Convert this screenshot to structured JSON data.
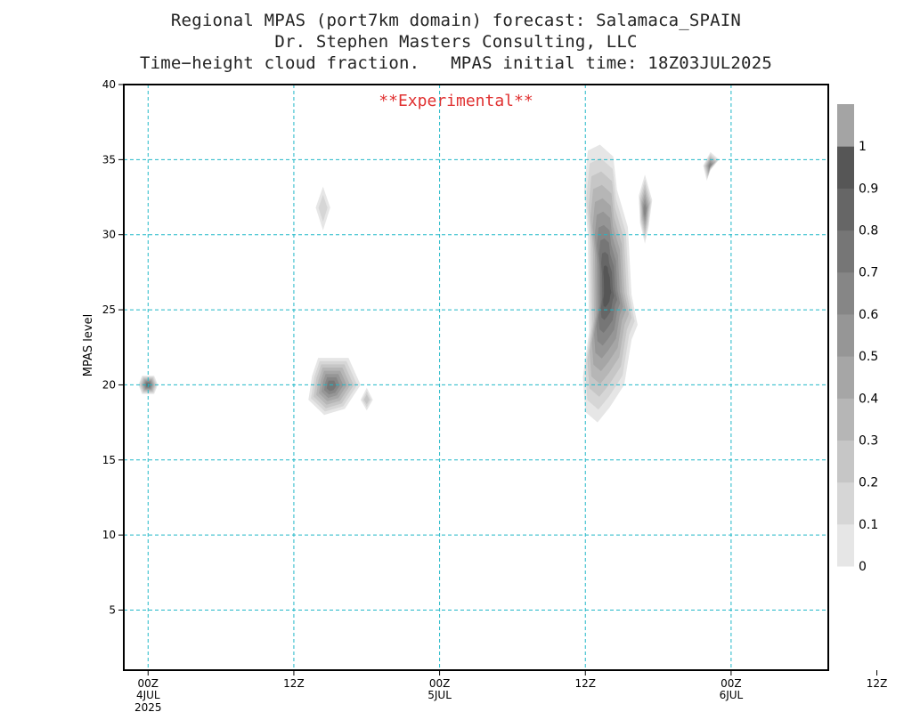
{
  "header": {
    "line1": "Regional MPAS (port7km domain) forecast: Salamaca_SPAIN",
    "line2": "Dr. Stephen Masters Consulting, LLC",
    "line3": "Time−height cloud fraction.   MPAS initial time: 18Z03JUL2025",
    "watermark": "**Experimental**"
  },
  "colors": {
    "grid": "#21b8c8",
    "watermark": "#e03030",
    "levels": [
      "#e6e6e6",
      "#d6d6d6",
      "#c6c6c6",
      "#b6b6b6",
      "#a6a6a6",
      "#969696",
      "#868686",
      "#767676",
      "#666666",
      "#565656",
      "#a4a4a4"
    ]
  },
  "chart_data": {
    "type": "heatmap",
    "title": "Time−height cloud fraction",
    "xlabel": "",
    "ylabel": "MPAS level",
    "x_units": "hours since 18Z03JUL2025",
    "xlim": [
      4,
      62
    ],
    "ylim": [
      1,
      40
    ],
    "grid": true,
    "y_ticks": [
      5,
      10,
      15,
      20,
      25,
      30,
      35,
      40
    ],
    "x_ticks": [
      {
        "hour": 6,
        "label": "00Z",
        "sub1": "4JUL",
        "sub2": "2025"
      },
      {
        "hour": 18,
        "label": "12Z",
        "sub1": "",
        "sub2": ""
      },
      {
        "hour": 30,
        "label": "00Z",
        "sub1": "5JUL",
        "sub2": ""
      },
      {
        "hour": 42,
        "label": "12Z",
        "sub1": "",
        "sub2": ""
      },
      {
        "hour": 54,
        "label": "00Z",
        "sub1": "6JUL",
        "sub2": ""
      },
      {
        "hour": 66,
        "label": "12Z",
        "sub1": "",
        "sub2": ""
      }
    ],
    "colorbar": {
      "levels": [
        0,
        0.1,
        0.2,
        0.3,
        0.4,
        0.5,
        0.6,
        0.7,
        0.8,
        0.9,
        1
      ],
      "labels": [
        "0",
        "0.1",
        "0.2",
        "0.3",
        "0.4",
        "0.5",
        "0.6",
        "0.7",
        "0.8",
        "0.9",
        "1"
      ]
    },
    "cloud_features": [
      {
        "name": "cloud-patch-1",
        "t": [
          5.2,
          6.8
        ],
        "lev": [
          19.4,
          20.6
        ],
        "peak": 0.85,
        "points": [
          [
            5.2,
            20
          ],
          [
            5.5,
            19.4
          ],
          [
            6.5,
            19.4
          ],
          [
            6.8,
            20
          ],
          [
            6.5,
            20.6
          ],
          [
            5.5,
            20.6
          ]
        ]
      },
      {
        "name": "cloud-patch-2",
        "t": [
          19.8,
          21.0
        ],
        "lev": [
          30.3,
          33.2
        ],
        "peak": 0.2,
        "points": [
          [
            20.4,
            33.2
          ],
          [
            21.0,
            31.8
          ],
          [
            20.4,
            30.3
          ],
          [
            19.8,
            31.8
          ]
        ]
      },
      {
        "name": "cloud-patch-3",
        "t": [
          19.2,
          23.5
        ],
        "lev": [
          18.0,
          21.8
        ],
        "peak": 0.8,
        "points": [
          [
            20,
            21.8
          ],
          [
            22.5,
            21.8
          ],
          [
            23.5,
            20
          ],
          [
            22.2,
            18.4
          ],
          [
            20.5,
            18.0
          ],
          [
            19.2,
            19.0
          ],
          [
            19.5,
            20.6
          ]
        ]
      },
      {
        "name": "cloud-patch-4",
        "t": [
          23.5,
          24.5
        ],
        "lev": [
          18.3,
          19.8
        ],
        "peak": 0.3,
        "points": [
          [
            24,
            19.8
          ],
          [
            24.5,
            19.0
          ],
          [
            24,
            18.3
          ],
          [
            23.5,
            19.0
          ]
        ]
      },
      {
        "name": "cloud-patch-5",
        "t": [
          41.8,
          46.3
        ],
        "lev": [
          17.5,
          36.0
        ],
        "peak": 0.95,
        "points": [
          [
            42.2,
            35.6
          ],
          [
            43.2,
            36.0
          ],
          [
            44.3,
            35.2
          ],
          [
            44.6,
            33.0
          ],
          [
            45.5,
            30.5
          ],
          [
            45.8,
            26.0
          ],
          [
            46.3,
            24.0
          ],
          [
            45.8,
            23.0
          ],
          [
            45.2,
            20.0
          ],
          [
            44.0,
            18.5
          ],
          [
            43.0,
            17.5
          ],
          [
            42.0,
            18.2
          ],
          [
            41.8,
            20.5
          ],
          [
            42.3,
            23.5
          ],
          [
            42.2,
            30.0
          ],
          [
            41.9,
            33.0
          ]
        ]
      },
      {
        "name": "cloud-patch-6",
        "t": [
          46.4,
          47.5
        ],
        "lev": [
          29.4,
          34.0
        ],
        "peak": 0.7,
        "points": [
          [
            46.9,
            34.0
          ],
          [
            47.5,
            32.3
          ],
          [
            47.2,
            30.5
          ],
          [
            46.9,
            29.4
          ],
          [
            46.5,
            30.8
          ],
          [
            46.4,
            32.6
          ]
        ]
      },
      {
        "name": "cloud-patch-7",
        "t": [
          51.7,
          53.0
        ],
        "lev": [
          33.6,
          35.5
        ],
        "peak": 0.7,
        "points": [
          [
            52.3,
            35.5
          ],
          [
            53.0,
            35.0
          ],
          [
            52.3,
            34.3
          ],
          [
            52.0,
            33.6
          ],
          [
            51.7,
            34.6
          ]
        ]
      }
    ]
  }
}
